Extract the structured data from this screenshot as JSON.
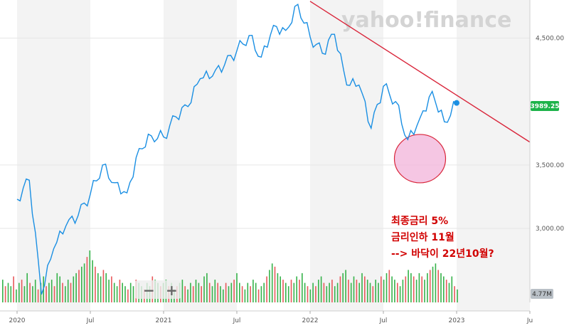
{
  "chart_data": {
    "type": "line",
    "watermark": "yahoo!finance",
    "x_ticks": [
      "2020",
      "Jul",
      "2021",
      "Jul",
      "2022",
      "Jul",
      "2023",
      "Ju"
    ],
    "y_ticks": [
      "4,500.00",
      "3,500.00",
      "3,000.00"
    ],
    "ylim": [
      2350,
      4800
    ],
    "last_price_label": "3989.25",
    "volume_label": "4.77M",
    "price_series": {
      "x": [
        "2020-01",
        "2020-02",
        "2020-03",
        "2020-04",
        "2020-05",
        "2020-06",
        "2020-07",
        "2020-08",
        "2020-09",
        "2020-10",
        "2020-11",
        "2020-12",
        "2021-01",
        "2021-02",
        "2021-03",
        "2021-04",
        "2021-05",
        "2021-06",
        "2021-07",
        "2021-08",
        "2021-09",
        "2021-10",
        "2021-11",
        "2021-12",
        "2022-01",
        "2022-02",
        "2022-03",
        "2022-04",
        "2022-05",
        "2022-06",
        "2022-07",
        "2022-08",
        "2022-09",
        "2022-10",
        "2022-11",
        "2022-12",
        "2023-01"
      ],
      "y": [
        3230,
        3380,
        2480,
        2840,
        3020,
        3100,
        3270,
        3500,
        3360,
        3280,
        3630,
        3730,
        3720,
        3880,
        3960,
        4180,
        4200,
        4290,
        4400,
        4520,
        4350,
        4600,
        4560,
        4766,
        4510,
        4380,
        4530,
        4130,
        4130,
        3790,
        4120,
        4000,
        3700,
        3870,
        4080,
        3840,
        3989
      ]
    },
    "trendline": {
      "from": [
        "2022-01",
        4790
      ],
      "to": [
        "2023-07",
        3680
      ]
    },
    "highlight_circle": {
      "x": "2022-10",
      "y": 3550
    },
    "volume_bars": [
      7,
      5,
      6,
      5,
      8,
      4,
      6,
      7,
      5,
      9,
      6,
      5,
      7,
      4,
      6,
      8,
      5,
      6,
      7,
      5,
      9,
      8,
      6,
      5,
      7,
      6,
      8,
      9,
      10,
      11,
      12,
      14,
      16,
      13,
      11,
      9,
      8,
      10,
      9,
      7,
      8,
      6,
      5,
      7,
      6,
      5,
      4,
      6,
      5,
      7,
      6,
      5,
      4,
      6,
      5,
      8,
      7,
      6,
      5,
      6,
      7,
      5,
      6,
      4,
      5,
      6,
      7,
      5,
      4,
      6,
      5,
      7,
      6,
      5,
      8,
      9,
      6,
      5,
      7,
      6,
      5,
      4,
      6,
      5,
      6,
      7,
      9,
      6,
      5,
      4,
      6,
      5,
      7,
      6,
      4,
      5,
      6,
      8,
      10,
      12,
      11,
      9,
      8,
      7,
      6,
      5,
      7,
      6,
      8,
      7,
      9,
      6,
      5,
      4,
      6,
      5,
      7,
      8,
      6,
      5,
      6,
      7,
      5,
      6,
      8,
      9,
      10,
      7,
      6,
      8,
      7,
      6,
      9,
      8,
      7,
      6,
      5,
      7,
      6,
      8,
      7,
      9,
      10,
      8,
      7,
      6,
      5,
      7,
      8,
      10,
      9,
      8,
      7,
      9,
      8,
      7,
      9,
      10,
      11,
      12,
      10,
      9,
      8,
      7,
      6,
      8,
      5,
      4
    ]
  },
  "annotations": [
    "최종금리 5%",
    "금리인하 11월",
    "--> 바닥이 22년10월?"
  ],
  "controls": {
    "zoom_out": "−",
    "zoom_in": "+"
  },
  "colors": {
    "price_line": "#1a8fe3",
    "trend_line": "#d9253a",
    "circle_fill": "#f2b8dc",
    "circle_stroke": "#d9253a",
    "badge": "#1db34a",
    "vol_up": "#36b24a",
    "vol_down": "#e8585a",
    "annotation": "#d10000"
  }
}
